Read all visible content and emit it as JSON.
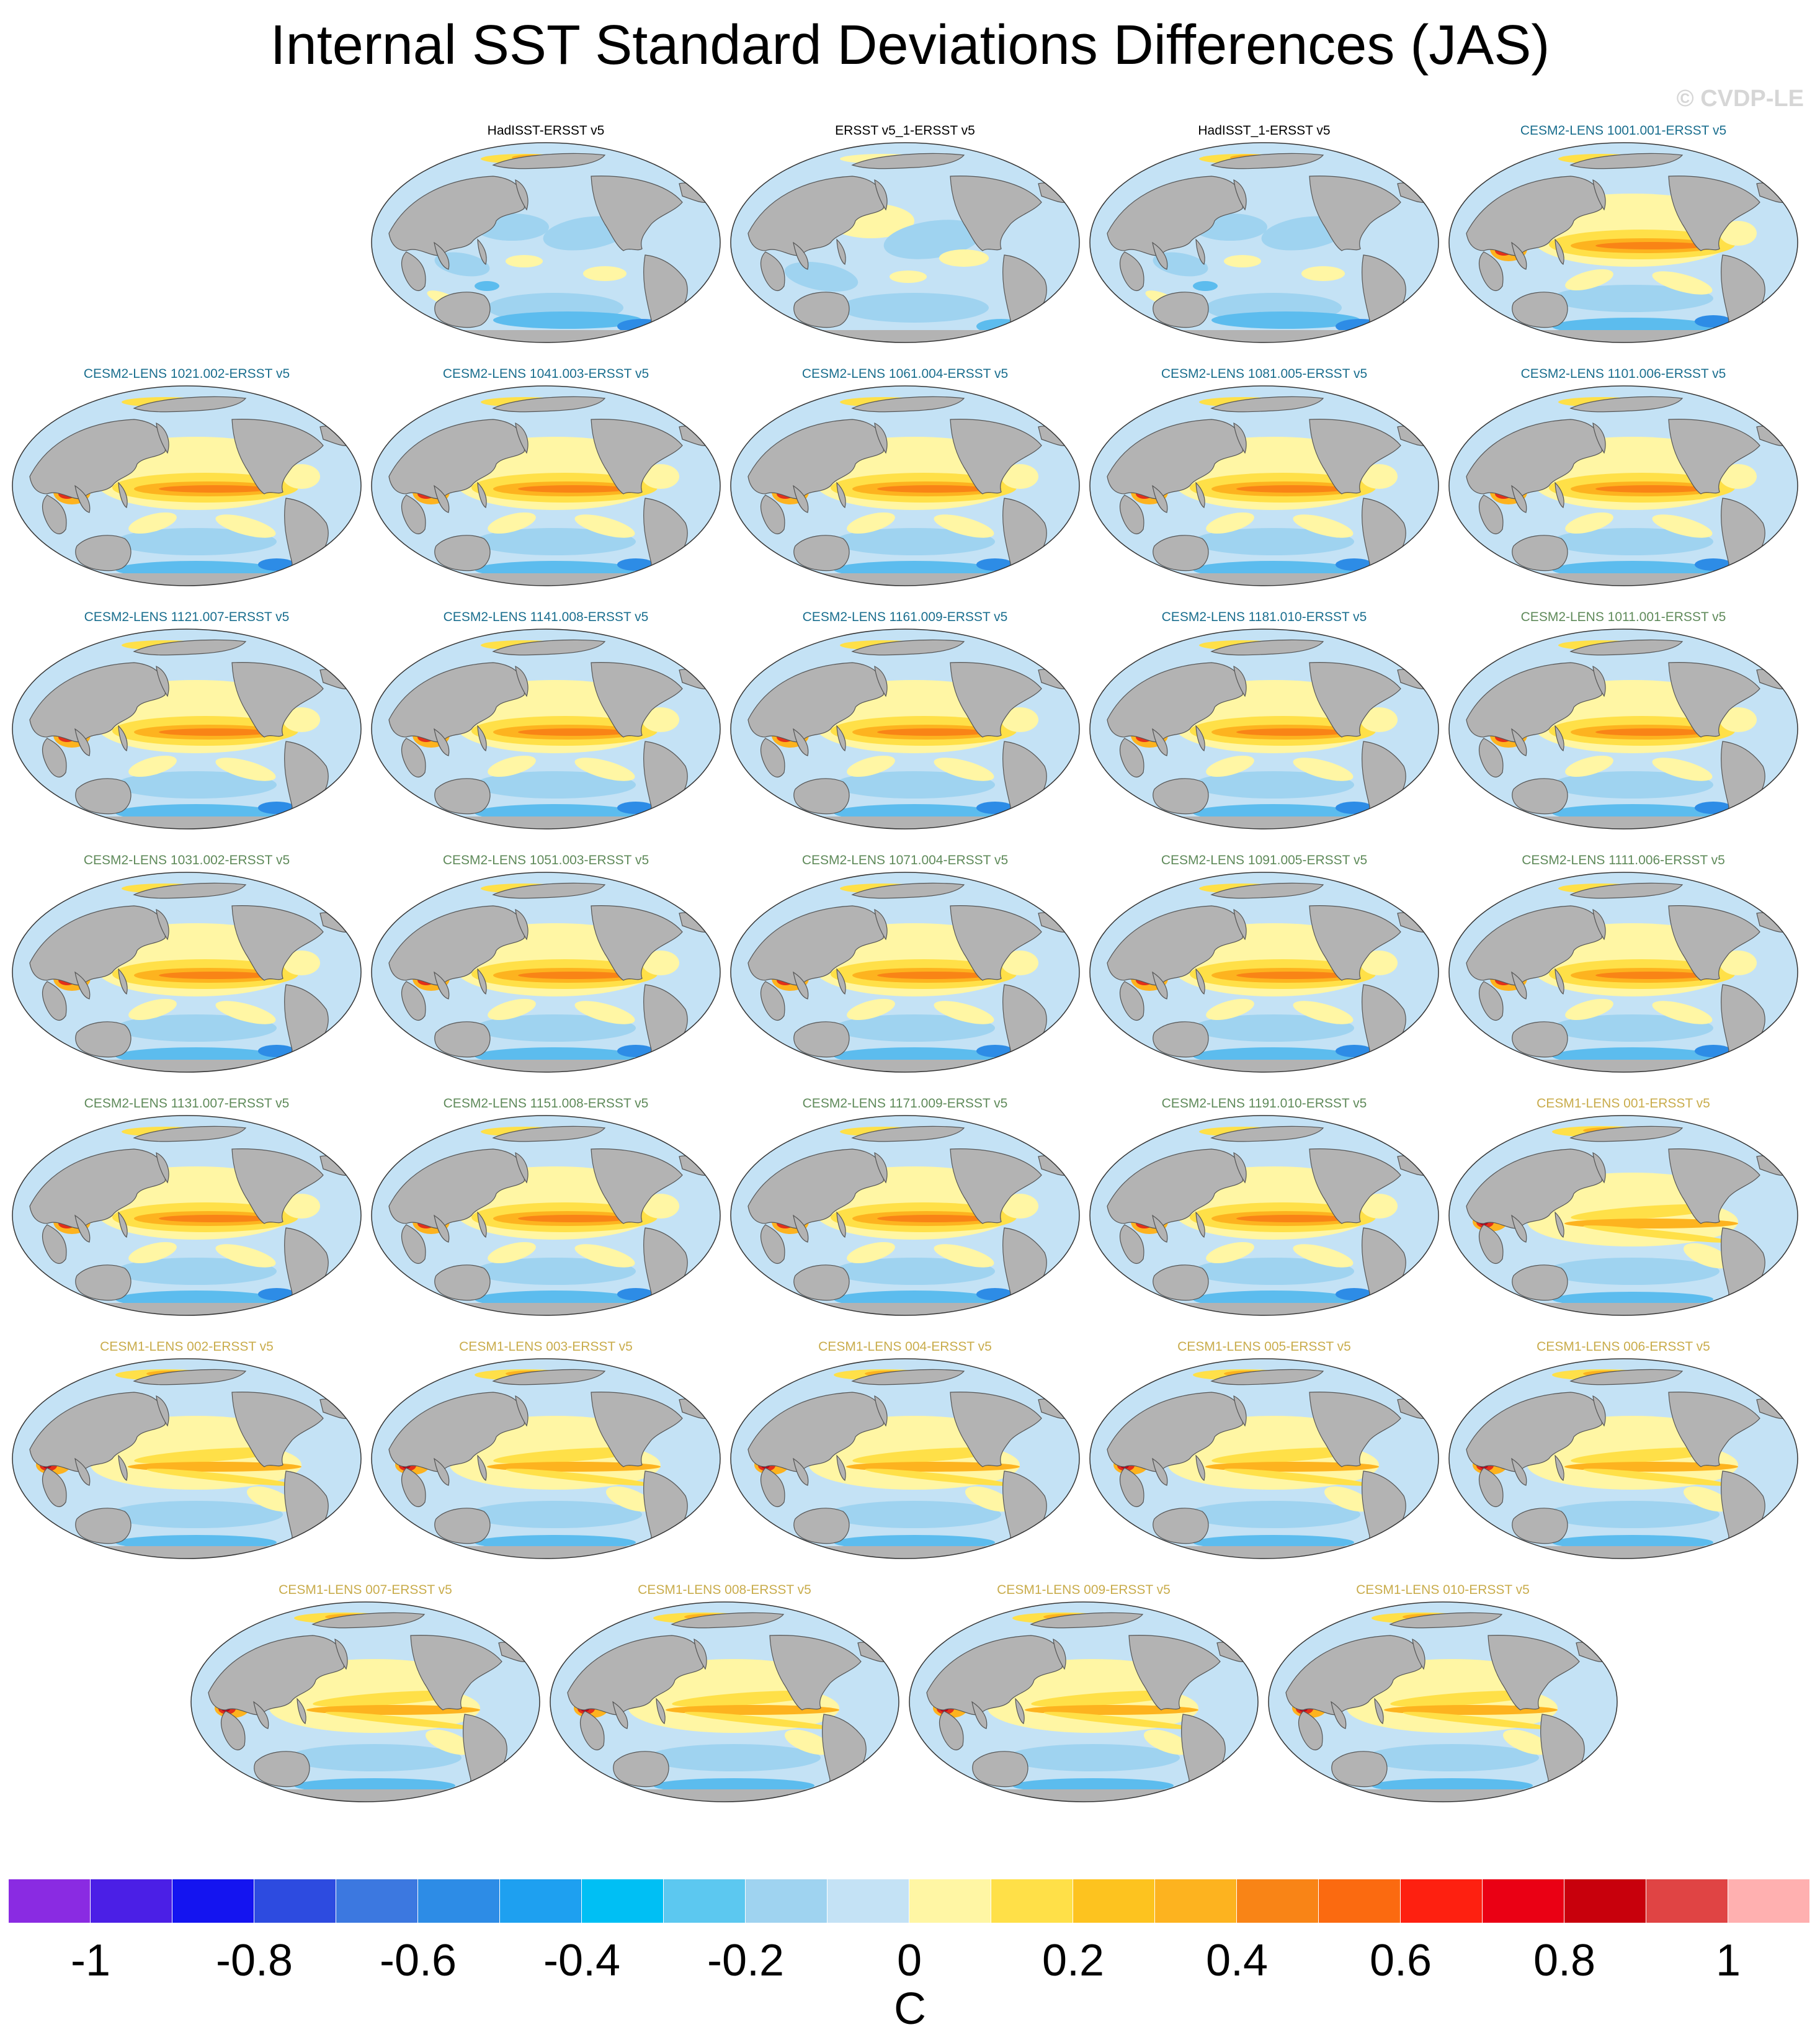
{
  "title": "Internal SST Standard Deviations Differences (JAS)",
  "watermark": "© CVDP-LE",
  "group_colors": {
    "observations": "#000000",
    "cesm2_a": "#1a6e8e",
    "cesm2_b": "#5f8a5a",
    "cesm1": "#c9ac4c"
  },
  "colors": {
    "land": "#b3b3b3",
    "ocean_base": "#c4e2f5",
    "light_blue": "#9fd3f0",
    "blue": "#5cbcee",
    "deep_blue": "#2d8ce6",
    "pale_yellow": "#fff6a4",
    "yellow": "#ffe048",
    "orange": "#fdb31f",
    "dark_orange": "#f98416",
    "red": "#e3301a",
    "dark_red": "#b8001a"
  },
  "panels": [
    {
      "label": "HadISST-ERSST v5",
      "group": "observations",
      "style": "obs"
    },
    {
      "label": "ERSST v5_1-ERSST v5",
      "group": "observations",
      "style": "obs2"
    },
    {
      "label": "HadISST_1-ERSST v5",
      "group": "observations",
      "style": "obs"
    },
    {
      "label": "CESM2-LENS 1001.001-ERSST v5",
      "group": "cesm2_a",
      "style": "cesm2"
    },
    {
      "label": "CESM2-LENS 1021.002-ERSST v5",
      "group": "cesm2_a",
      "style": "cesm2"
    },
    {
      "label": "CESM2-LENS 1041.003-ERSST v5",
      "group": "cesm2_a",
      "style": "cesm2"
    },
    {
      "label": "CESM2-LENS 1061.004-ERSST v5",
      "group": "cesm2_a",
      "style": "cesm2"
    },
    {
      "label": "CESM2-LENS 1081.005-ERSST v5",
      "group": "cesm2_a",
      "style": "cesm2"
    },
    {
      "label": "CESM2-LENS 1101.006-ERSST v5",
      "group": "cesm2_a",
      "style": "cesm2"
    },
    {
      "label": "CESM2-LENS 1121.007-ERSST v5",
      "group": "cesm2_a",
      "style": "cesm2"
    },
    {
      "label": "CESM2-LENS 1141.008-ERSST v5",
      "group": "cesm2_a",
      "style": "cesm2"
    },
    {
      "label": "CESM2-LENS 1161.009-ERSST v5",
      "group": "cesm2_a",
      "style": "cesm2"
    },
    {
      "label": "CESM2-LENS 1181.010-ERSST v5",
      "group": "cesm2_a",
      "style": "cesm2"
    },
    {
      "label": "CESM2-LENS 1011.001-ERSST v5",
      "group": "cesm2_b",
      "style": "cesm2"
    },
    {
      "label": "CESM2-LENS 1031.002-ERSST v5",
      "group": "cesm2_b",
      "style": "cesm2"
    },
    {
      "label": "CESM2-LENS 1051.003-ERSST v5",
      "group": "cesm2_b",
      "style": "cesm2"
    },
    {
      "label": "CESM2-LENS 1071.004-ERSST v5",
      "group": "cesm2_b",
      "style": "cesm2"
    },
    {
      "label": "CESM2-LENS 1091.005-ERSST v5",
      "group": "cesm2_b",
      "style": "cesm2"
    },
    {
      "label": "CESM2-LENS 1111.006-ERSST v5",
      "group": "cesm2_b",
      "style": "cesm2"
    },
    {
      "label": "CESM2-LENS 1131.007-ERSST v5",
      "group": "cesm2_b",
      "style": "cesm2"
    },
    {
      "label": "CESM2-LENS 1151.008-ERSST v5",
      "group": "cesm2_b",
      "style": "cesm2"
    },
    {
      "label": "CESM2-LENS 1171.009-ERSST v5",
      "group": "cesm2_b",
      "style": "cesm2"
    },
    {
      "label": "CESM2-LENS 1191.010-ERSST v5",
      "group": "cesm2_b",
      "style": "cesm2"
    },
    {
      "label": "CESM1-LENS 001-ERSST v5",
      "group": "cesm1",
      "style": "cesm1"
    },
    {
      "label": "CESM1-LENS 002-ERSST v5",
      "group": "cesm1",
      "style": "cesm1"
    },
    {
      "label": "CESM1-LENS 003-ERSST v5",
      "group": "cesm1",
      "style": "cesm1"
    },
    {
      "label": "CESM1-LENS 004-ERSST v5",
      "group": "cesm1",
      "style": "cesm1"
    },
    {
      "label": "CESM1-LENS 005-ERSST v5",
      "group": "cesm1",
      "style": "cesm1"
    },
    {
      "label": "CESM1-LENS 006-ERSST v5",
      "group": "cesm1",
      "style": "cesm1"
    },
    {
      "label": "CESM1-LENS 007-ERSST v5",
      "group": "cesm1",
      "style": "cesm1"
    },
    {
      "label": "CESM1-LENS 008-ERSST v5",
      "group": "cesm1",
      "style": "cesm1"
    },
    {
      "label": "CESM1-LENS 009-ERSST v5",
      "group": "cesm1",
      "style": "cesm1"
    },
    {
      "label": "CESM1-LENS 010-ERSST v5",
      "group": "cesm1",
      "style": "cesm1"
    }
  ],
  "colorbar": {
    "units": "C",
    "tick_labels": [
      "-1",
      "-0.8",
      "-0.6",
      "-0.4",
      "-0.2",
      "0",
      "0.2",
      "0.4",
      "0.6",
      "0.8",
      "1"
    ],
    "colors": [
      "#8a2be2",
      "#4b1fe6",
      "#1414f0",
      "#2d4be0",
      "#3c78e0",
      "#2d8ce6",
      "#1ea0f0",
      "#00bff4",
      "#5cc8f0",
      "#9fd3f0",
      "#c4e2f5",
      "#fff6a4",
      "#ffe048",
      "#fdc31f",
      "#fdb31f",
      "#f98416",
      "#fb6a10",
      "#fe2010",
      "#ea0014",
      "#c8000c",
      "#e04444",
      "#ffb0b0"
    ]
  }
}
